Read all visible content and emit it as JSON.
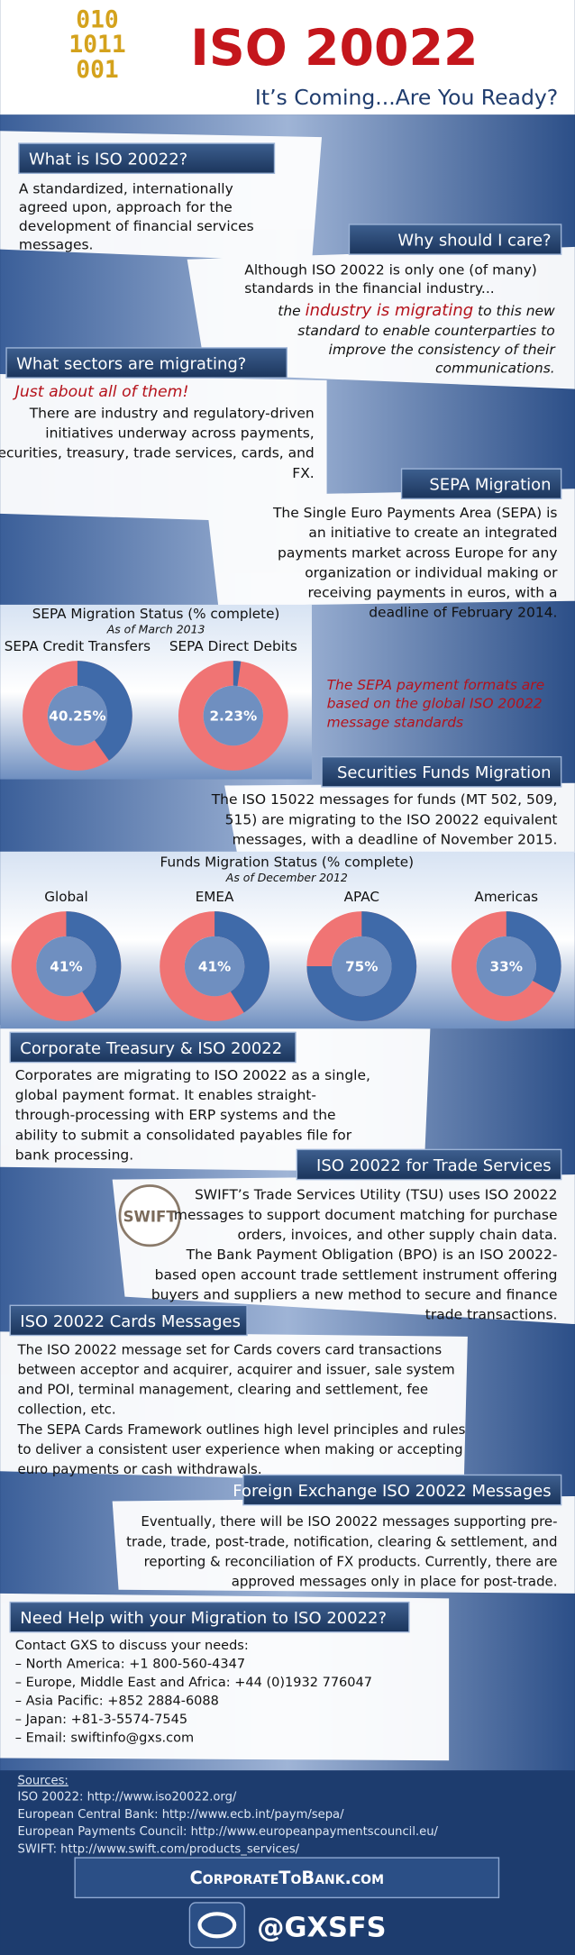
{
  "header": {
    "logo_lines": [
      "010",
      "1011",
      "001"
    ],
    "title": "ISO 20022",
    "subtitle": "It’s Coming...Are You Ready?"
  },
  "what_is": {
    "heading": "What is ISO 20022?",
    "lines": [
      "A standardized, internationally",
      "agreed upon, approach for the",
      "development of financial services",
      "messages."
    ]
  },
  "why_care": {
    "heading": "Why should I care?",
    "lines": [
      "Although ISO 20022 is only one (of many)",
      "standards in the financial industry..."
    ],
    "highlight": {
      "before": "the ",
      "emphasis": "industry is migrating",
      "after": " to this new"
    },
    "closing_lines": [
      "standard to enable counterparties to",
      "improve the consistency of their",
      "communications."
    ]
  },
  "sectors": {
    "heading": "What sectors are migrating?",
    "tagline": "Just about all of them!",
    "lines": [
      "There are industry and regulatory-driven",
      "initiatives underway across payments,",
      "securities, treasury, trade services, cards, and",
      "FX."
    ]
  },
  "sepa": {
    "heading": "SEPA Migration",
    "lines": [
      "The Single Euro Payments Area (SEPA) is",
      "an initiative to create an integrated",
      "payments market across Europe for any",
      "organization or individual making or",
      "receiving payments in euros, with a",
      "deadline of February 2014."
    ],
    "note_lines": [
      "The SEPA payment formats are",
      "based on the global ISO 20022",
      "message standards"
    ]
  },
  "sepa_chart": {
    "type": "donut",
    "title": "SEPA Migration Status (% complete)",
    "subtitle": "As of March 2013",
    "charts": [
      {
        "label": "SEPA Credit Transfers",
        "value": 40.25,
        "value_label": "40.25%"
      },
      {
        "label": "SEPA  Direct Debits",
        "value": 2.23,
        "value_label": "2.23%"
      }
    ]
  },
  "funds": {
    "heading": "Securities Funds Migration",
    "lines": [
      "The ISO 15022 messages for funds (MT 502, 509,",
      "515) are migrating to the ISO 20022 equivalent",
      "messages, with a deadline of November 2015."
    ]
  },
  "funds_chart": {
    "type": "donut",
    "title": "Funds Migration Status (% complete)",
    "subtitle": "As of December 2012",
    "charts": [
      {
        "label": "Global",
        "value": 41,
        "value_label": "41%"
      },
      {
        "label": "EMEA",
        "value": 41,
        "value_label": "41%"
      },
      {
        "label": "APAC",
        "value": 75,
        "value_label": "75%"
      },
      {
        "label": "Americas",
        "value": 33,
        "value_label": "33%"
      }
    ]
  },
  "treasury": {
    "heading": "Corporate Treasury & ISO 20022",
    "lines": [
      "Corporates are migrating to ISO 20022 as a single,",
      "global payment format. It enables straight-",
      "through-processing with ERP systems and the",
      "ability to submit a consolidated payables file for",
      "bank processing."
    ]
  },
  "trade": {
    "heading": "ISO 20022 for Trade Services",
    "logo": "SWIFT",
    "lines": [
      "SWIFT’s Trade Services Utility (TSU) uses ISO 20022",
      "messages to support document matching for purchase",
      "orders, invoices, and other supply chain data.",
      "The Bank Payment Obligation (BPO) is an ISO 20022-",
      "based open account trade settlement instrument offering",
      "buyers and suppliers a new method to secure and finance",
      "trade transactions."
    ]
  },
  "cards": {
    "heading": "ISO 20022 Cards Messages",
    "lines": [
      "The ISO 20022 message set for Cards covers card transactions",
      "between acceptor and acquirer, acquirer and issuer, sale system",
      "and POI, terminal management, clearing and settlement, fee",
      "collection, etc.",
      "The SEPA Cards Framework outlines high level principles and rules",
      "to deliver a consistent user experience when making or accepting",
      "euro payments or cash withdrawals."
    ]
  },
  "fx": {
    "heading": "Foreign Exchange ISO 20022 Messages",
    "lines": [
      "Eventually, there will be ISO 20022 messages supporting pre-",
      "trade, trade, post-trade, notification, clearing & settlement, and",
      "reporting & reconciliation of FX products. Currently, there are",
      "approved messages only in place for post-trade."
    ]
  },
  "help": {
    "heading": "Need Help with your Migration to ISO 20022?",
    "lines": [
      "Contact GXS to discuss your needs:",
      "– North America: +1 800-560-4347",
      "– Europe, Middle East and Africa: +44 (0)1932 776047",
      "– Asia Pacific: +852 2884-6088",
      "– Japan: +81-3-5574-7545",
      "– Email:  swiftinfo@gxs.com"
    ]
  },
  "sources": {
    "heading": "Sources:",
    "lines": [
      "ISO 20022:  http://www.iso20022.org/",
      "European Central Bank:  http://www.ecb.int/paym/sepa/",
      "European Payments Council:  http://www.europeanpaymentscouncil.eu/",
      "SWIFT:   http://www.swift.com/products_services/"
    ]
  },
  "footer": {
    "site": "CorporateToBank.com",
    "handle": "@GXSFS"
  }
}
